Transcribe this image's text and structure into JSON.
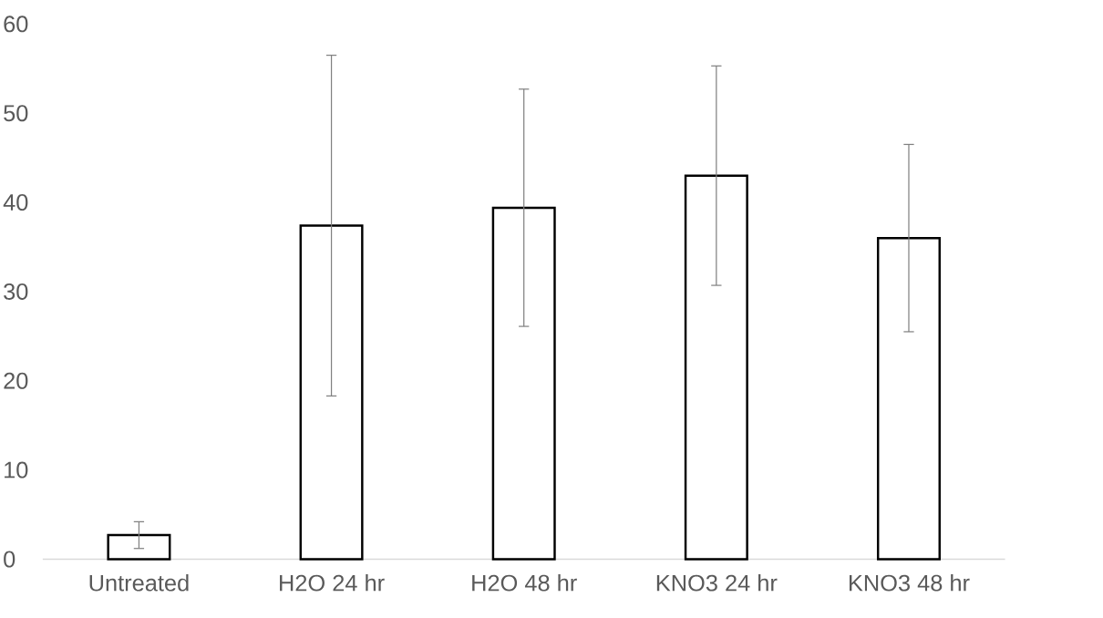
{
  "chart_data": {
    "type": "bar",
    "categories": [
      "Untreated",
      "H2O 24 hr",
      "H2O 48 hr",
      "KNO3 24 hr",
      "KNO3 48 hr"
    ],
    "values": [
      2.7,
      37.4,
      39.4,
      43.0,
      36.0
    ],
    "errors": [
      1.5,
      19.1,
      13.3,
      12.3,
      10.5
    ],
    "color": "#000000",
    "ylim": [
      0,
      60
    ],
    "yticks": [
      0,
      10,
      20,
      30,
      40,
      50,
      60
    ]
  }
}
